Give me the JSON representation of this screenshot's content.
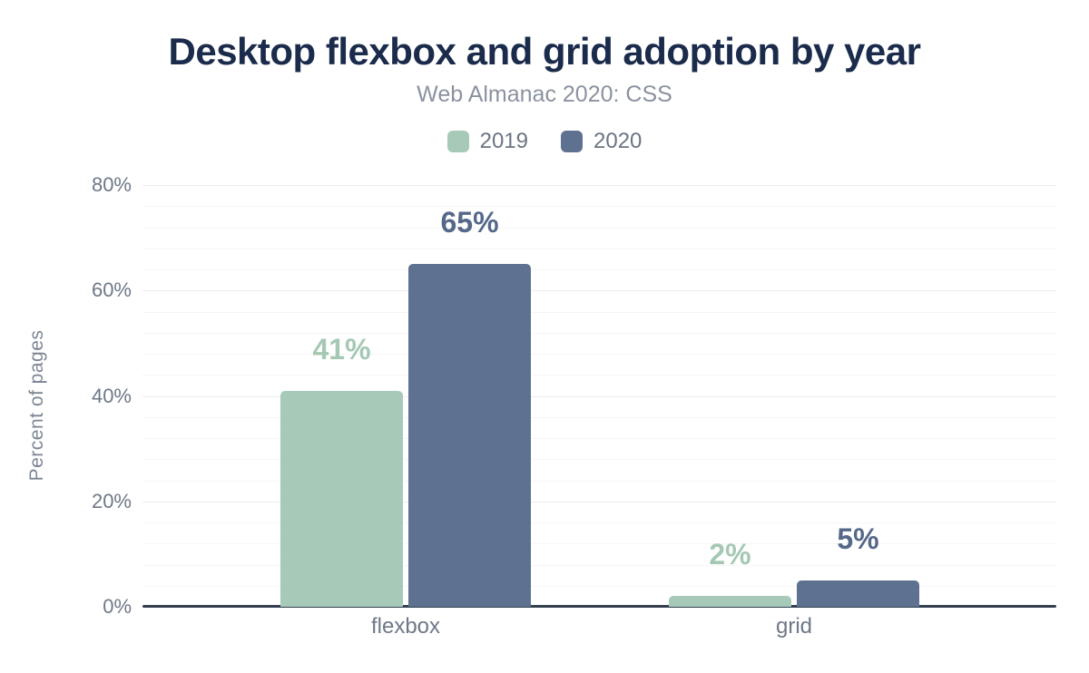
{
  "chart_data": {
    "type": "bar",
    "title": "Desktop flexbox and grid adoption by year",
    "subtitle": "Web Almanac 2020: CSS",
    "categories": [
      "flexbox",
      "grid"
    ],
    "series": [
      {
        "name": "2019",
        "color": "#a7c9b8",
        "label_color": "#a5c8b4",
        "values": [
          41,
          2
        ],
        "data_labels": [
          "41%",
          "2%"
        ]
      },
      {
        "name": "2020",
        "color": "#5f7190",
        "label_color": "#566889",
        "values": [
          65,
          5
        ],
        "data_labels": [
          "65%",
          "5%"
        ]
      }
    ],
    "xlabel": "",
    "ylabel": "Percent of pages",
    "ylim": [
      0,
      80
    ],
    "yaxis": {
      "ticks": [
        0,
        20,
        40,
        60,
        80
      ],
      "tick_labels": [
        "0%",
        "20%",
        "40%",
        "60%",
        "80%"
      ],
      "major_step": 20,
      "minor_grid_step": 4
    },
    "legend_position": "top",
    "grid": true
  },
  "colors": {
    "background": "#ffffff",
    "title": "#1b2b4b",
    "subtitle": "#8b92a0",
    "legend_label": "#6c7585",
    "tick_label": "#6f7888",
    "category_label": "#6f7888",
    "y_axis_title": "#7c8694",
    "axis_line": "#333f50",
    "grid_major": "#ececec",
    "grid_minor": "#f6f6f7"
  }
}
